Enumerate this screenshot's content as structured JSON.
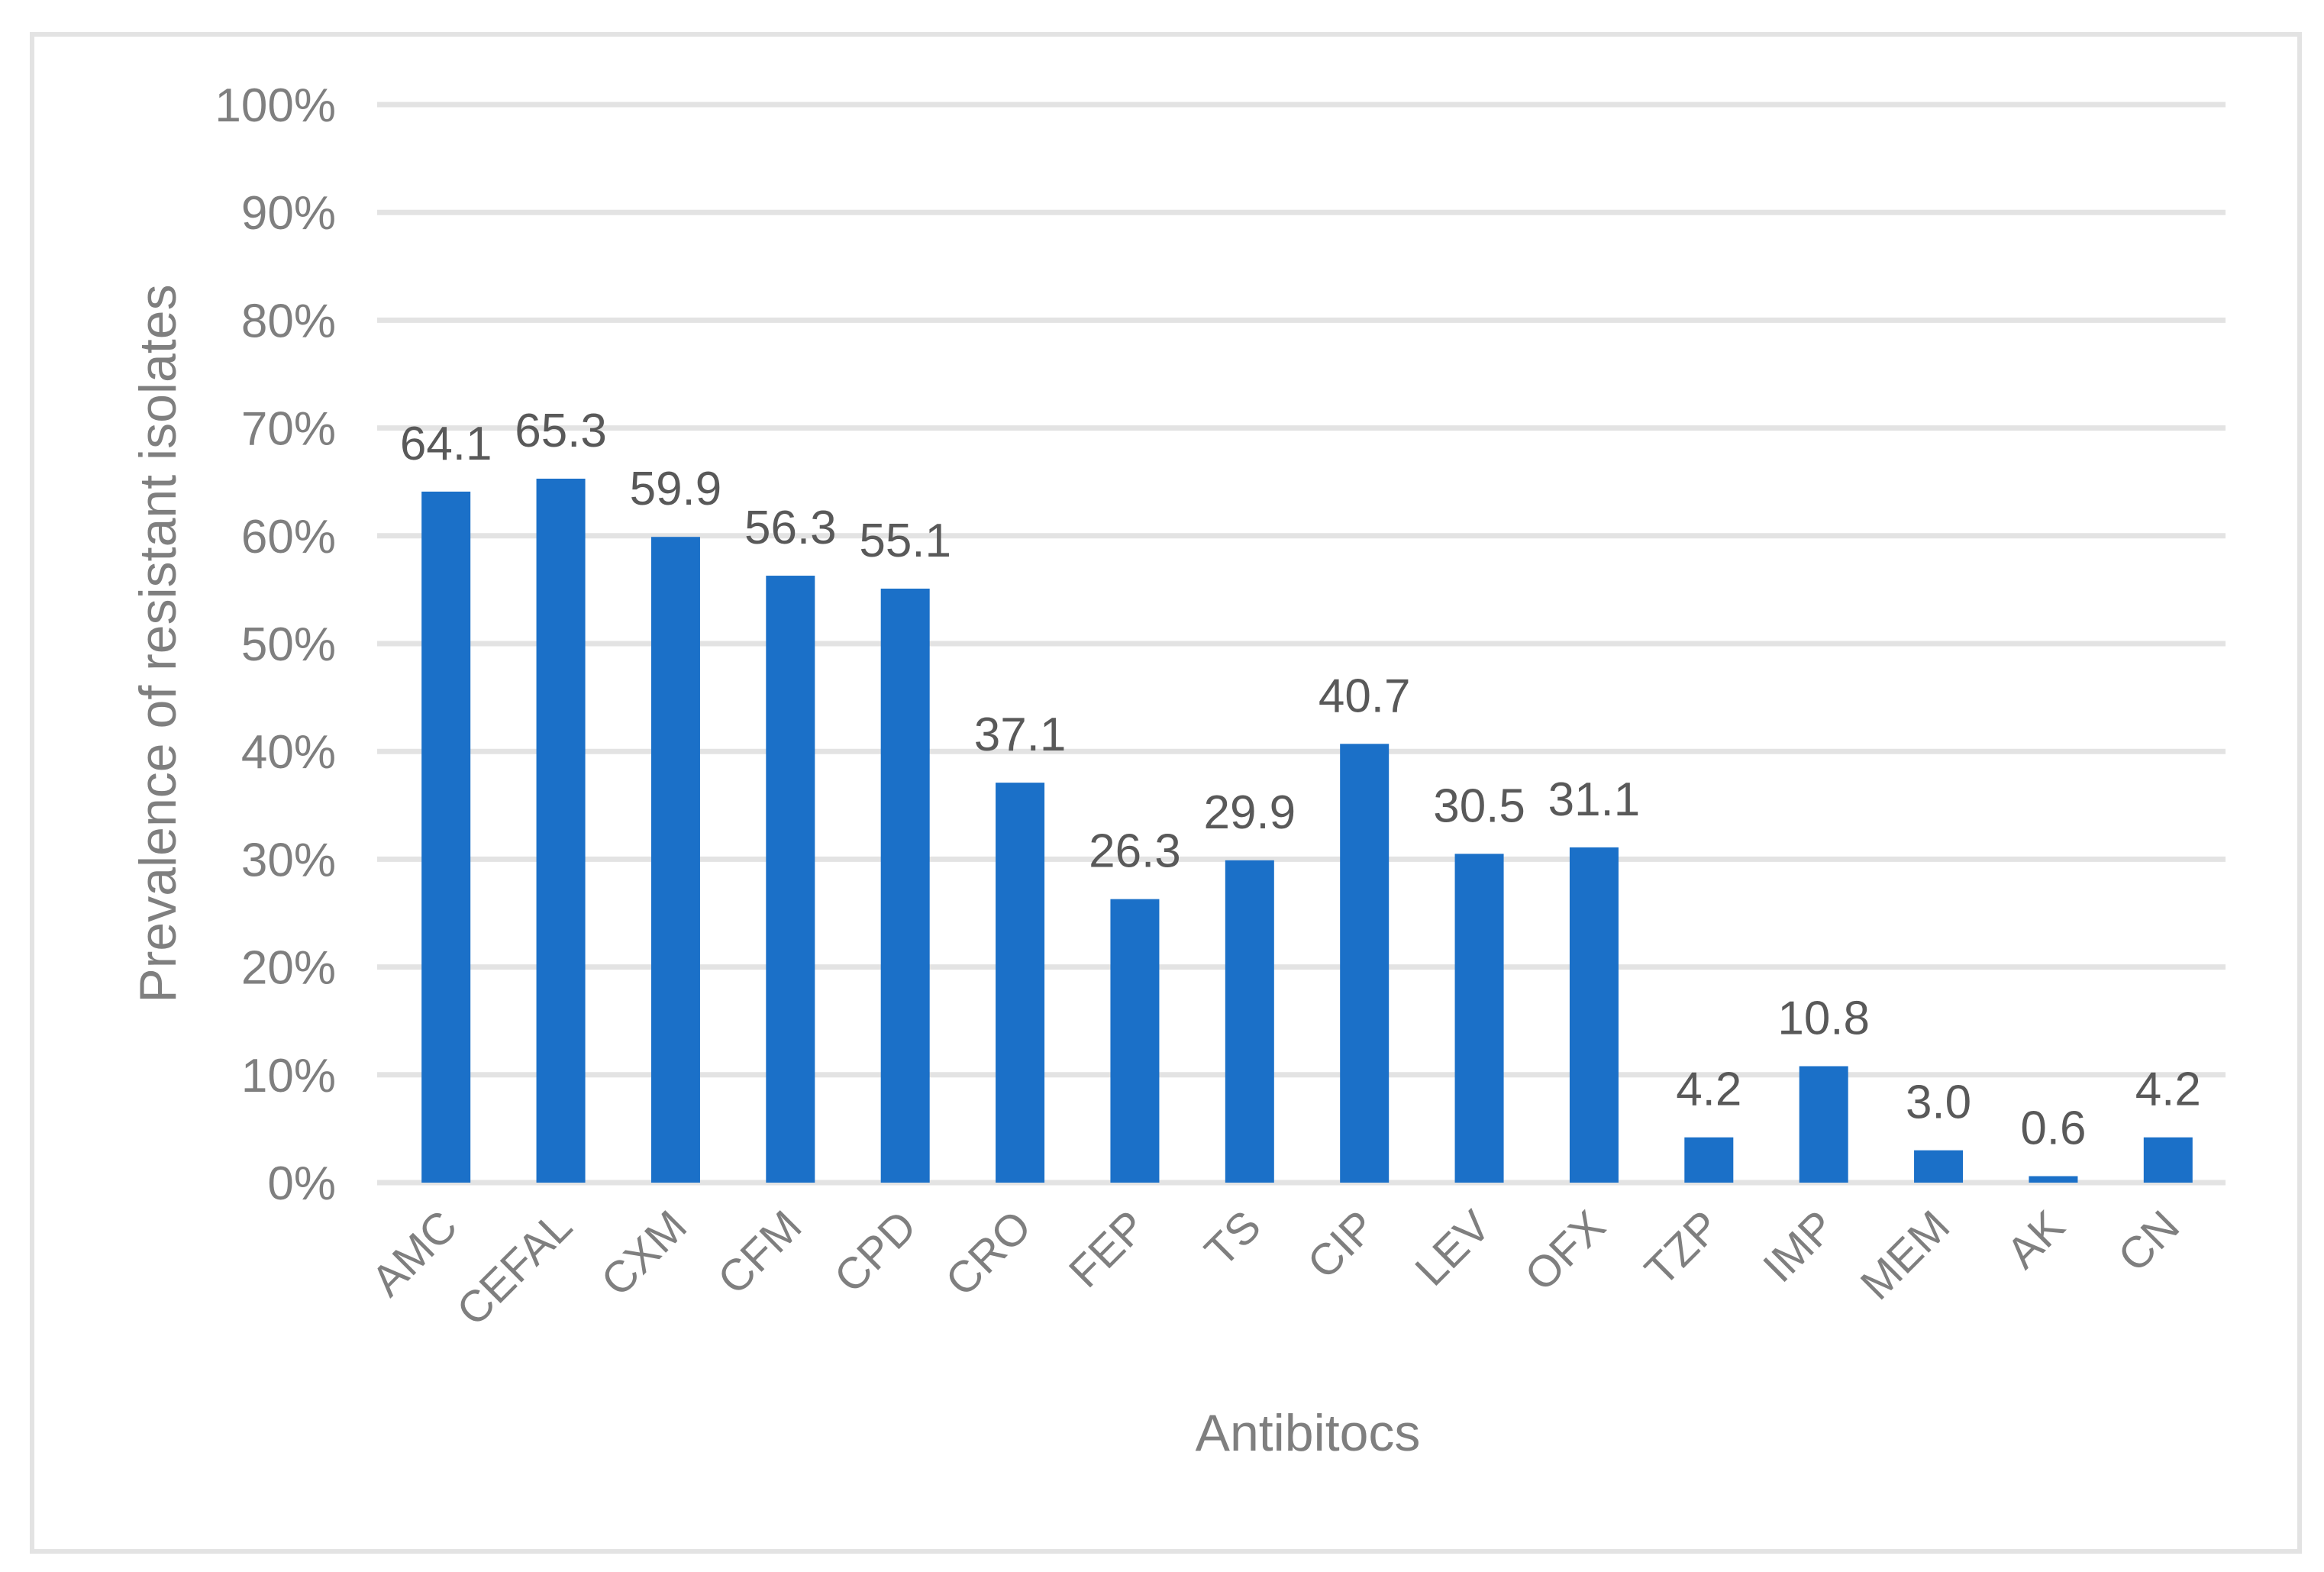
{
  "chart_data": {
    "type": "bar",
    "title": "",
    "xlabel": "Antibitocs",
    "ylabel": "Prevalence of resistant isolates",
    "ylim": [
      0,
      100
    ],
    "y_ticks": [
      "0%",
      "10%",
      "20%",
      "30%",
      "40%",
      "50%",
      "60%",
      "70%",
      "80%",
      "90%",
      "100%"
    ],
    "grid": true,
    "legend": null,
    "bar_color": "#1b70c8",
    "categories": [
      "AMC",
      "CEFAL",
      "CXM",
      "CFM",
      "CPD",
      "CRO",
      "FEP",
      "TS",
      "CIP",
      "LEV",
      "OFX",
      "TZP",
      "IMP",
      "MEM",
      "AK",
      "CN"
    ],
    "values": [
      64.1,
      65.3,
      59.9,
      56.3,
      55.1,
      37.1,
      26.3,
      29.9,
      40.7,
      30.5,
      31.1,
      4.2,
      10.8,
      3.0,
      0.6,
      4.2
    ],
    "data_labels": [
      "64.1",
      "65.3",
      "59.9",
      "56.3",
      "55.1",
      "37.1",
      "26.3",
      "29.9",
      "40.7",
      "30.5",
      "31.1",
      "4.2",
      "10.8",
      "3.0",
      "0.6",
      "4.2"
    ]
  }
}
